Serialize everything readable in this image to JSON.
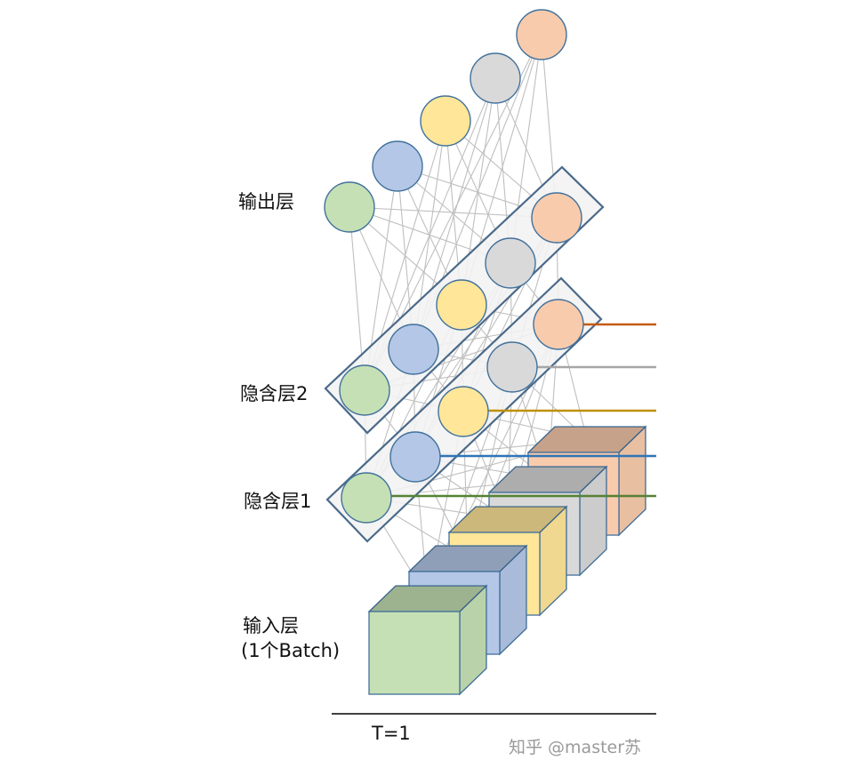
{
  "labels": {
    "output_layer": "输出层",
    "hidden_layer_2": "隐含层2",
    "hidden_layer_1": "隐含层1",
    "input_layer_line1": "输入层",
    "input_layer_line2": "(1个Batch)",
    "time_step": "T=1",
    "watermark": "知乎 @master苏"
  },
  "colors": {
    "green": "#c5e0b4",
    "blue": "#b4c7e7",
    "yellow": "#ffe699",
    "gray": "#d9d9d9",
    "orange": "#f8cbad",
    "node_stroke": "#41719c",
    "layer_box_fill": "#f2f2f2",
    "layer_box_stroke": "#4a6a8a",
    "link_stroke": "#bfbfbf",
    "out_line_orange": "#c55a11",
    "out_line_gray": "#a6a6a6",
    "out_line_yellow": "#bf9000",
    "out_line_blue": "#2e75b6",
    "out_line_green": "#548235"
  }
}
